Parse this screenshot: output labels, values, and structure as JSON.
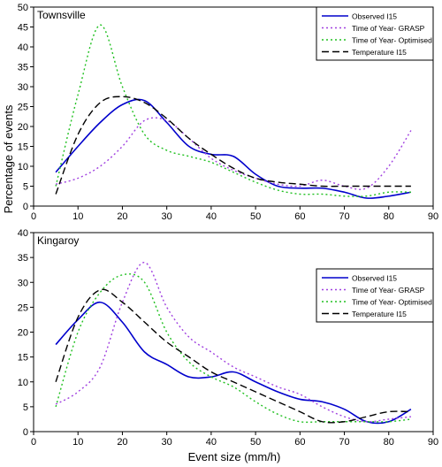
{
  "figure": {
    "ylabel": "Percentage of events",
    "xlabel": "Event size (mm/h)"
  },
  "chart_data": [
    {
      "type": "line",
      "title": "Townsville",
      "xlim": [
        0,
        90
      ],
      "ylim": [
        0,
        50
      ],
      "xticks": [
        0,
        10,
        20,
        30,
        40,
        50,
        60,
        70,
        80,
        90
      ],
      "yticks": [
        0,
        5,
        10,
        15,
        20,
        25,
        30,
        35,
        40,
        45,
        50
      ],
      "grid": false,
      "legend_position": "top-right",
      "series": [
        {
          "name": "Observed I15",
          "color": "#0000cc",
          "dash": "solid",
          "points": [
            [
              5,
              8.5
            ],
            [
              10,
              15
            ],
            [
              15,
              21
            ],
            [
              20,
              25.5
            ],
            [
              25,
              26.5
            ],
            [
              30,
              21
            ],
            [
              35,
              15
            ],
            [
              40,
              13
            ],
            [
              45,
              12.5
            ],
            [
              50,
              8
            ],
            [
              55,
              5
            ],
            [
              60,
              4.5
            ],
            [
              65,
              4.5
            ],
            [
              70,
              3.5
            ],
            [
              75,
              2
            ],
            [
              80,
              2.5
            ],
            [
              85,
              3.5
            ]
          ]
        },
        {
          "name": "Time of Year- GRASP",
          "color": "#a040e0",
          "dash": "dot",
          "points": [
            [
              5,
              5.5
            ],
            [
              10,
              7
            ],
            [
              15,
              10
            ],
            [
              20,
              15
            ],
            [
              25,
              21.5
            ],
            [
              30,
              21.5
            ],
            [
              35,
              17
            ],
            [
              40,
              12
            ],
            [
              45,
              9
            ],
            [
              50,
              7
            ],
            [
              55,
              5.5
            ],
            [
              60,
              5
            ],
            [
              65,
              6.5
            ],
            [
              70,
              5
            ],
            [
              75,
              4.5
            ],
            [
              80,
              10
            ],
            [
              85,
              19
            ]
          ]
        },
        {
          "name": "Time of Year- Optimised",
          "color": "#20c020",
          "dash": "dot",
          "points": [
            [
              5,
              5
            ],
            [
              10,
              28
            ],
            [
              15,
              45.5
            ],
            [
              20,
              30
            ],
            [
              25,
              18
            ],
            [
              30,
              14
            ],
            [
              35,
              12.5
            ],
            [
              40,
              11
            ],
            [
              45,
              8.5
            ],
            [
              50,
              6
            ],
            [
              55,
              4
            ],
            [
              60,
              3
            ],
            [
              65,
              3
            ],
            [
              70,
              2.5
            ],
            [
              75,
              2.5
            ],
            [
              80,
              3.5
            ],
            [
              85,
              3.5
            ]
          ]
        },
        {
          "name": "Temperature I15",
          "color": "#000000",
          "dash": "dash",
          "points": [
            [
              5,
              3
            ],
            [
              10,
              18
            ],
            [
              15,
              26
            ],
            [
              20,
              27.5
            ],
            [
              25,
              26
            ],
            [
              30,
              22
            ],
            [
              35,
              17
            ],
            [
              40,
              13
            ],
            [
              45,
              9.5
            ],
            [
              50,
              7
            ],
            [
              55,
              6
            ],
            [
              60,
              5.5
            ],
            [
              65,
              5
            ],
            [
              70,
              5
            ],
            [
              75,
              5
            ],
            [
              80,
              5
            ],
            [
              85,
              5
            ]
          ]
        }
      ]
    },
    {
      "type": "line",
      "title": "Kingaroy",
      "xlim": [
        0,
        90
      ],
      "ylim": [
        0,
        40
      ],
      "xticks": [
        0,
        10,
        20,
        30,
        40,
        50,
        60,
        70,
        80,
        90
      ],
      "yticks": [
        0,
        5,
        10,
        15,
        20,
        25,
        30,
        35,
        40
      ],
      "grid": false,
      "legend_position": "top-right",
      "series": [
        {
          "name": "Observed I15",
          "color": "#0000cc",
          "dash": "solid",
          "points": [
            [
              5,
              17.5
            ],
            [
              10,
              22.5
            ],
            [
              15,
              26
            ],
            [
              20,
              22
            ],
            [
              25,
              16
            ],
            [
              30,
              13.5
            ],
            [
              35,
              11
            ],
            [
              40,
              11
            ],
            [
              45,
              12
            ],
            [
              50,
              10
            ],
            [
              55,
              8
            ],
            [
              60,
              6.5
            ],
            [
              65,
              6
            ],
            [
              70,
              4.5
            ],
            [
              75,
              2
            ],
            [
              80,
              2
            ],
            [
              85,
              4.5
            ]
          ]
        },
        {
          "name": "Time of Year- GRASP",
          "color": "#a040e0",
          "dash": "dot",
          "points": [
            [
              5,
              5.5
            ],
            [
              10,
              8
            ],
            [
              15,
              13
            ],
            [
              20,
              26
            ],
            [
              25,
              34
            ],
            [
              30,
              25
            ],
            [
              35,
              19
            ],
            [
              40,
              16
            ],
            [
              45,
              13
            ],
            [
              50,
              11
            ],
            [
              55,
              9
            ],
            [
              60,
              7.5
            ],
            [
              65,
              5
            ],
            [
              70,
              3
            ],
            [
              75,
              2
            ],
            [
              80,
              2.5
            ],
            [
              85,
              3
            ]
          ]
        },
        {
          "name": "Time of Year- Optimised",
          "color": "#20c020",
          "dash": "dot",
          "points": [
            [
              5,
              5
            ],
            [
              10,
              20
            ],
            [
              15,
              28
            ],
            [
              20,
              31.5
            ],
            [
              25,
              30
            ],
            [
              30,
              20
            ],
            [
              35,
              14
            ],
            [
              40,
              11
            ],
            [
              45,
              9
            ],
            [
              50,
              6
            ],
            [
              55,
              3.5
            ],
            [
              60,
              2
            ],
            [
              65,
              2
            ],
            [
              70,
              2
            ],
            [
              75,
              2
            ],
            [
              80,
              2
            ],
            [
              85,
              2.5
            ]
          ]
        },
        {
          "name": "Temperature I15",
          "color": "#000000",
          "dash": "dash",
          "points": [
            [
              5,
              10
            ],
            [
              10,
              23
            ],
            [
              15,
              28.5
            ],
            [
              20,
              26
            ],
            [
              25,
              22
            ],
            [
              30,
              18
            ],
            [
              35,
              15
            ],
            [
              40,
              12
            ],
            [
              45,
              10
            ],
            [
              50,
              8
            ],
            [
              55,
              6
            ],
            [
              60,
              4
            ],
            [
              65,
              2
            ],
            [
              70,
              2
            ],
            [
              75,
              3
            ],
            [
              80,
              4
            ],
            [
              85,
              4
            ]
          ]
        }
      ]
    }
  ]
}
